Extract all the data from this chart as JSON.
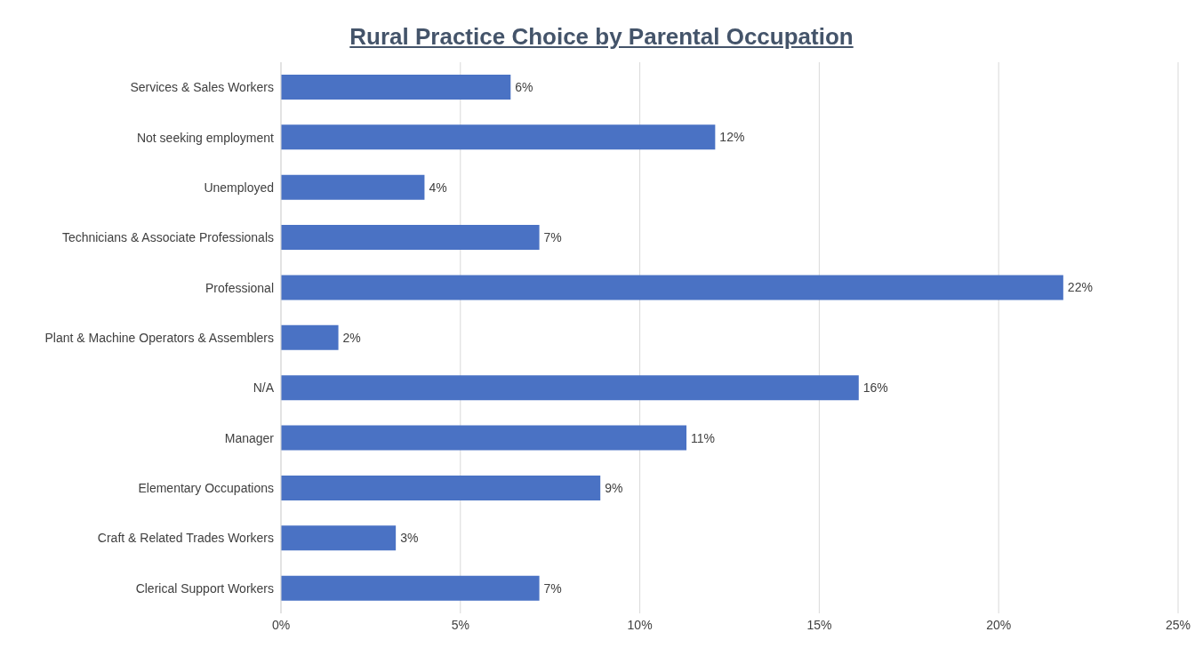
{
  "chart_data": {
    "type": "bar",
    "orientation": "horizontal",
    "title": "Rural Practice Choice by Parental Occupation",
    "categories": [
      "Services & Sales Workers",
      "Not seeking employment",
      "Unemployed",
      "Technicians & Associate Professionals",
      "Professional",
      "Plant & Machine Operators & Assemblers",
      "N/A",
      "Manager",
      "Elementary Occupations",
      "Craft & Related Trades Workers",
      "Clerical Support Workers"
    ],
    "values": [
      6.4,
      12.1,
      4.0,
      7.2,
      21.8,
      1.6,
      16.1,
      11.3,
      8.9,
      3.2,
      7.2
    ],
    "value_labels": [
      "6%",
      "12%",
      "4%",
      "7%",
      "22%",
      "2%",
      "16%",
      "11%",
      "9%",
      "3%",
      "7%"
    ],
    "color": "#4a72c4",
    "xlim": [
      0,
      25
    ],
    "xticks": [
      {
        "value": 0,
        "label": "0%"
      },
      {
        "value": 5,
        "label": "5%"
      },
      {
        "value": 10,
        "label": "10%"
      },
      {
        "value": 15,
        "label": "15%"
      },
      {
        "value": 20,
        "label": "20%"
      },
      {
        "value": 25,
        "label": "25%"
      }
    ],
    "grid": "x"
  }
}
